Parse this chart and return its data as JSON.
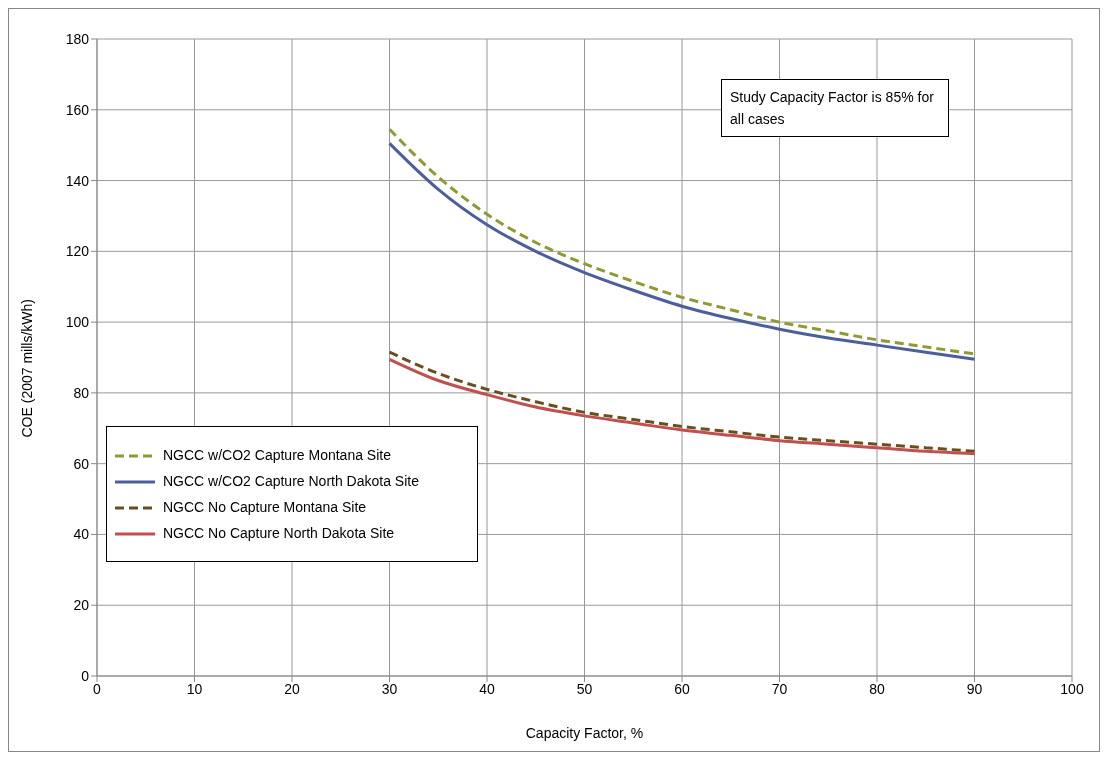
{
  "chart_data": {
    "type": "line",
    "xlabel": "Capacity Factor, %",
    "ylabel": "COE (2007 mills/kWh)",
    "x": [
      30,
      35,
      40,
      45,
      50,
      55,
      60,
      65,
      70,
      75,
      80,
      85,
      90
    ],
    "series": [
      {
        "name": "NGCC w/CO2 Capture Montana Site",
        "color": "#8e9a35",
        "line_style": "dashed",
        "values": [
          154.5,
          141,
          130.5,
          122.5,
          116.5,
          111.5,
          107,
          103.5,
          100,
          97.5,
          95,
          93,
          91
        ]
      },
      {
        "name": "NGCC w/CO2 Capture North Dakota Site",
        "color": "#4a5f9c",
        "line_style": "solid",
        "values": [
          150.5,
          137.5,
          127.5,
          120,
          114,
          109,
          104.5,
          101,
          98,
          95.5,
          93.5,
          91.5,
          89.5
        ]
      },
      {
        "name": "NGCC No Capture Montana Site",
        "color": "#6b4d1f",
        "line_style": "dashed",
        "values": [
          91.5,
          85.5,
          81,
          77.5,
          74.5,
          72.5,
          70.5,
          69,
          67.5,
          66.5,
          65.5,
          64.5,
          63.5
        ]
      },
      {
        "name": "NGCC No Capture North Dakota Site",
        "color": "#c0504d",
        "line_style": "solid",
        "values": [
          89.5,
          83.5,
          79.5,
          76,
          73.5,
          71.5,
          69.5,
          68,
          66.5,
          65.5,
          64.5,
          63.5,
          62.8
        ]
      }
    ],
    "xlim": [
      0,
      100
    ],
    "xticks": [
      0,
      10,
      20,
      30,
      40,
      50,
      60,
      70,
      80,
      90,
      100
    ],
    "ylim": [
      0,
      180
    ],
    "yticks": [
      0,
      20,
      40,
      60,
      80,
      100,
      120,
      140,
      160,
      180
    ],
    "grid": true,
    "legend": "bottom left",
    "marker": "none",
    "annotations": [
      "Study Capacity Factor is 85% for all cases"
    ]
  }
}
